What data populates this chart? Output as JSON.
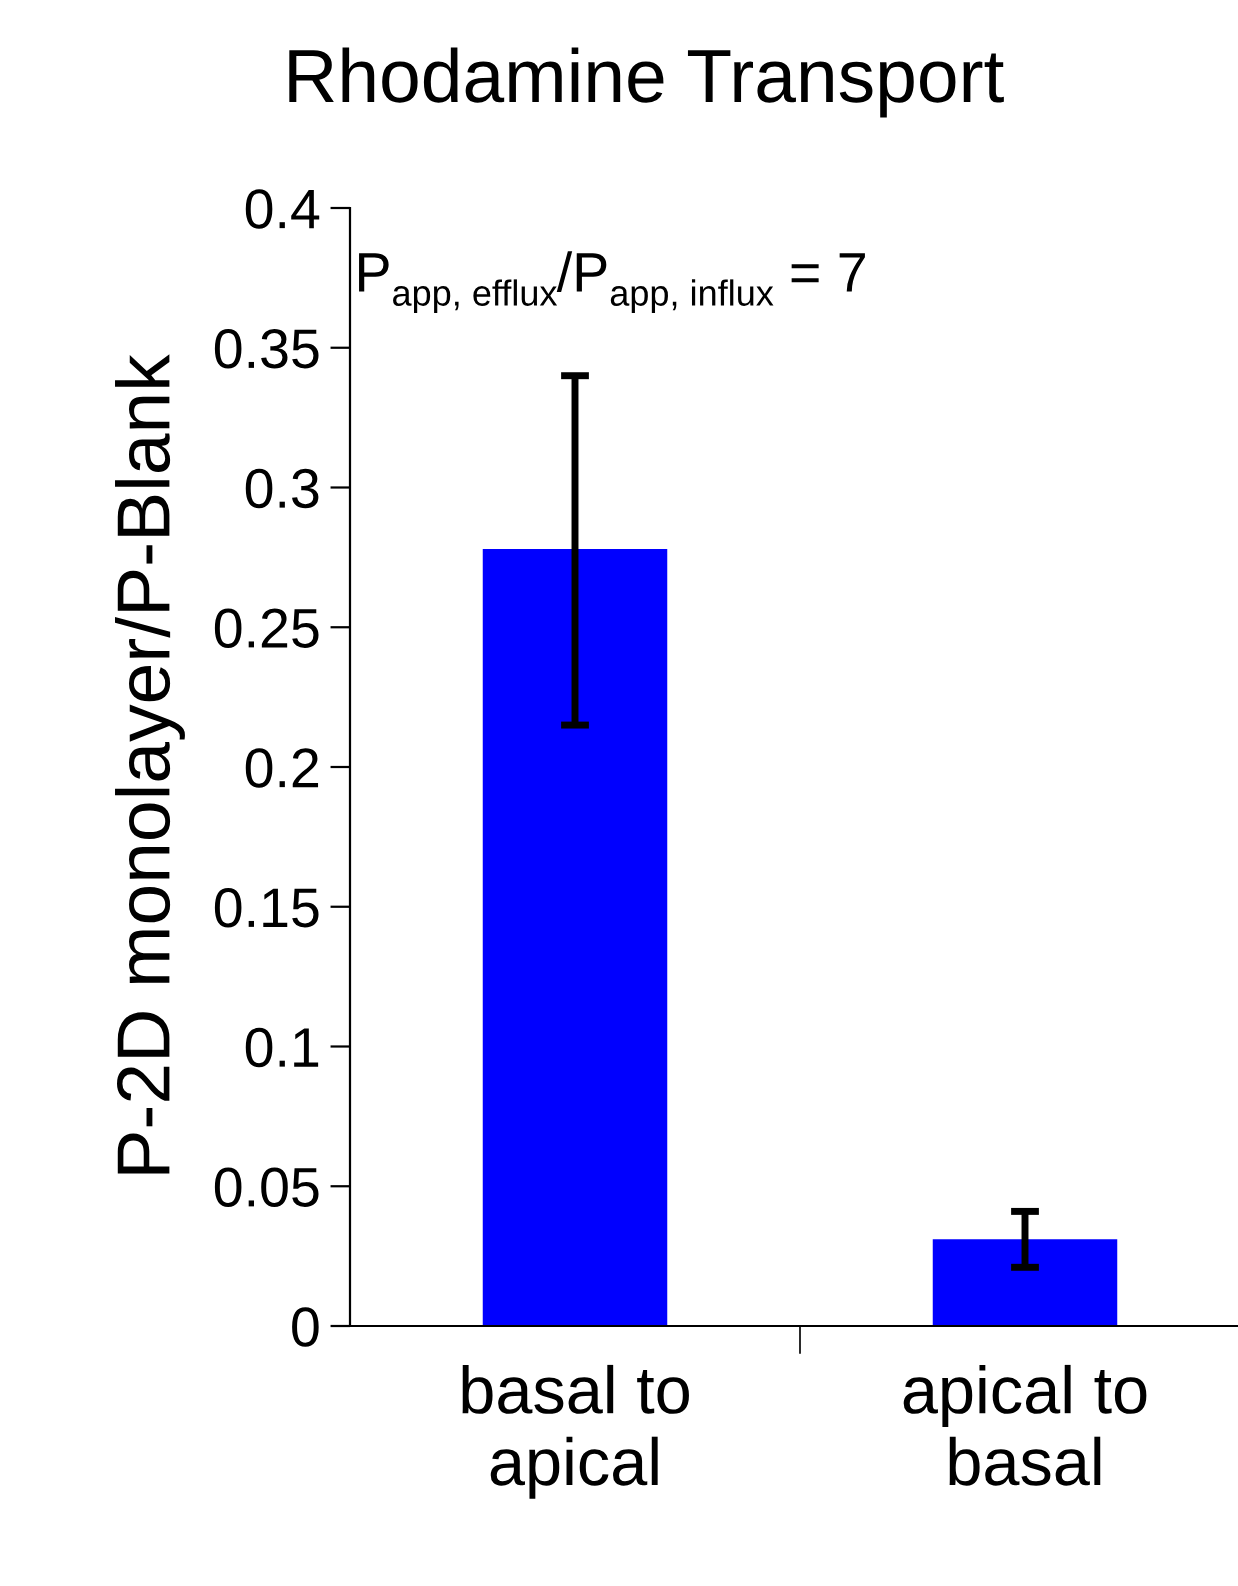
{
  "chart_data": {
    "type": "bar",
    "title": "Rhodamine Transport",
    "ylabel": "P-2D monolayer/P-Blank",
    "categories": [
      "basal to\napical",
      "apical to\nbasal"
    ],
    "values": [
      0.278,
      0.031
    ],
    "color": "#0000ff",
    "errors": [
      [
        0.215,
        0.34
      ],
      [
        0.021,
        0.041
      ]
    ],
    "ylim": [
      0,
      0.4
    ],
    "yticks": [
      0,
      0.05,
      0.1,
      0.15,
      0.2,
      0.25,
      0.3,
      0.35,
      0.4
    ],
    "annotations": [
      "P$_{app, efflux}$/P$_{app, influx}$ = 7"
    ],
    "grid": false,
    "legend": false
  }
}
